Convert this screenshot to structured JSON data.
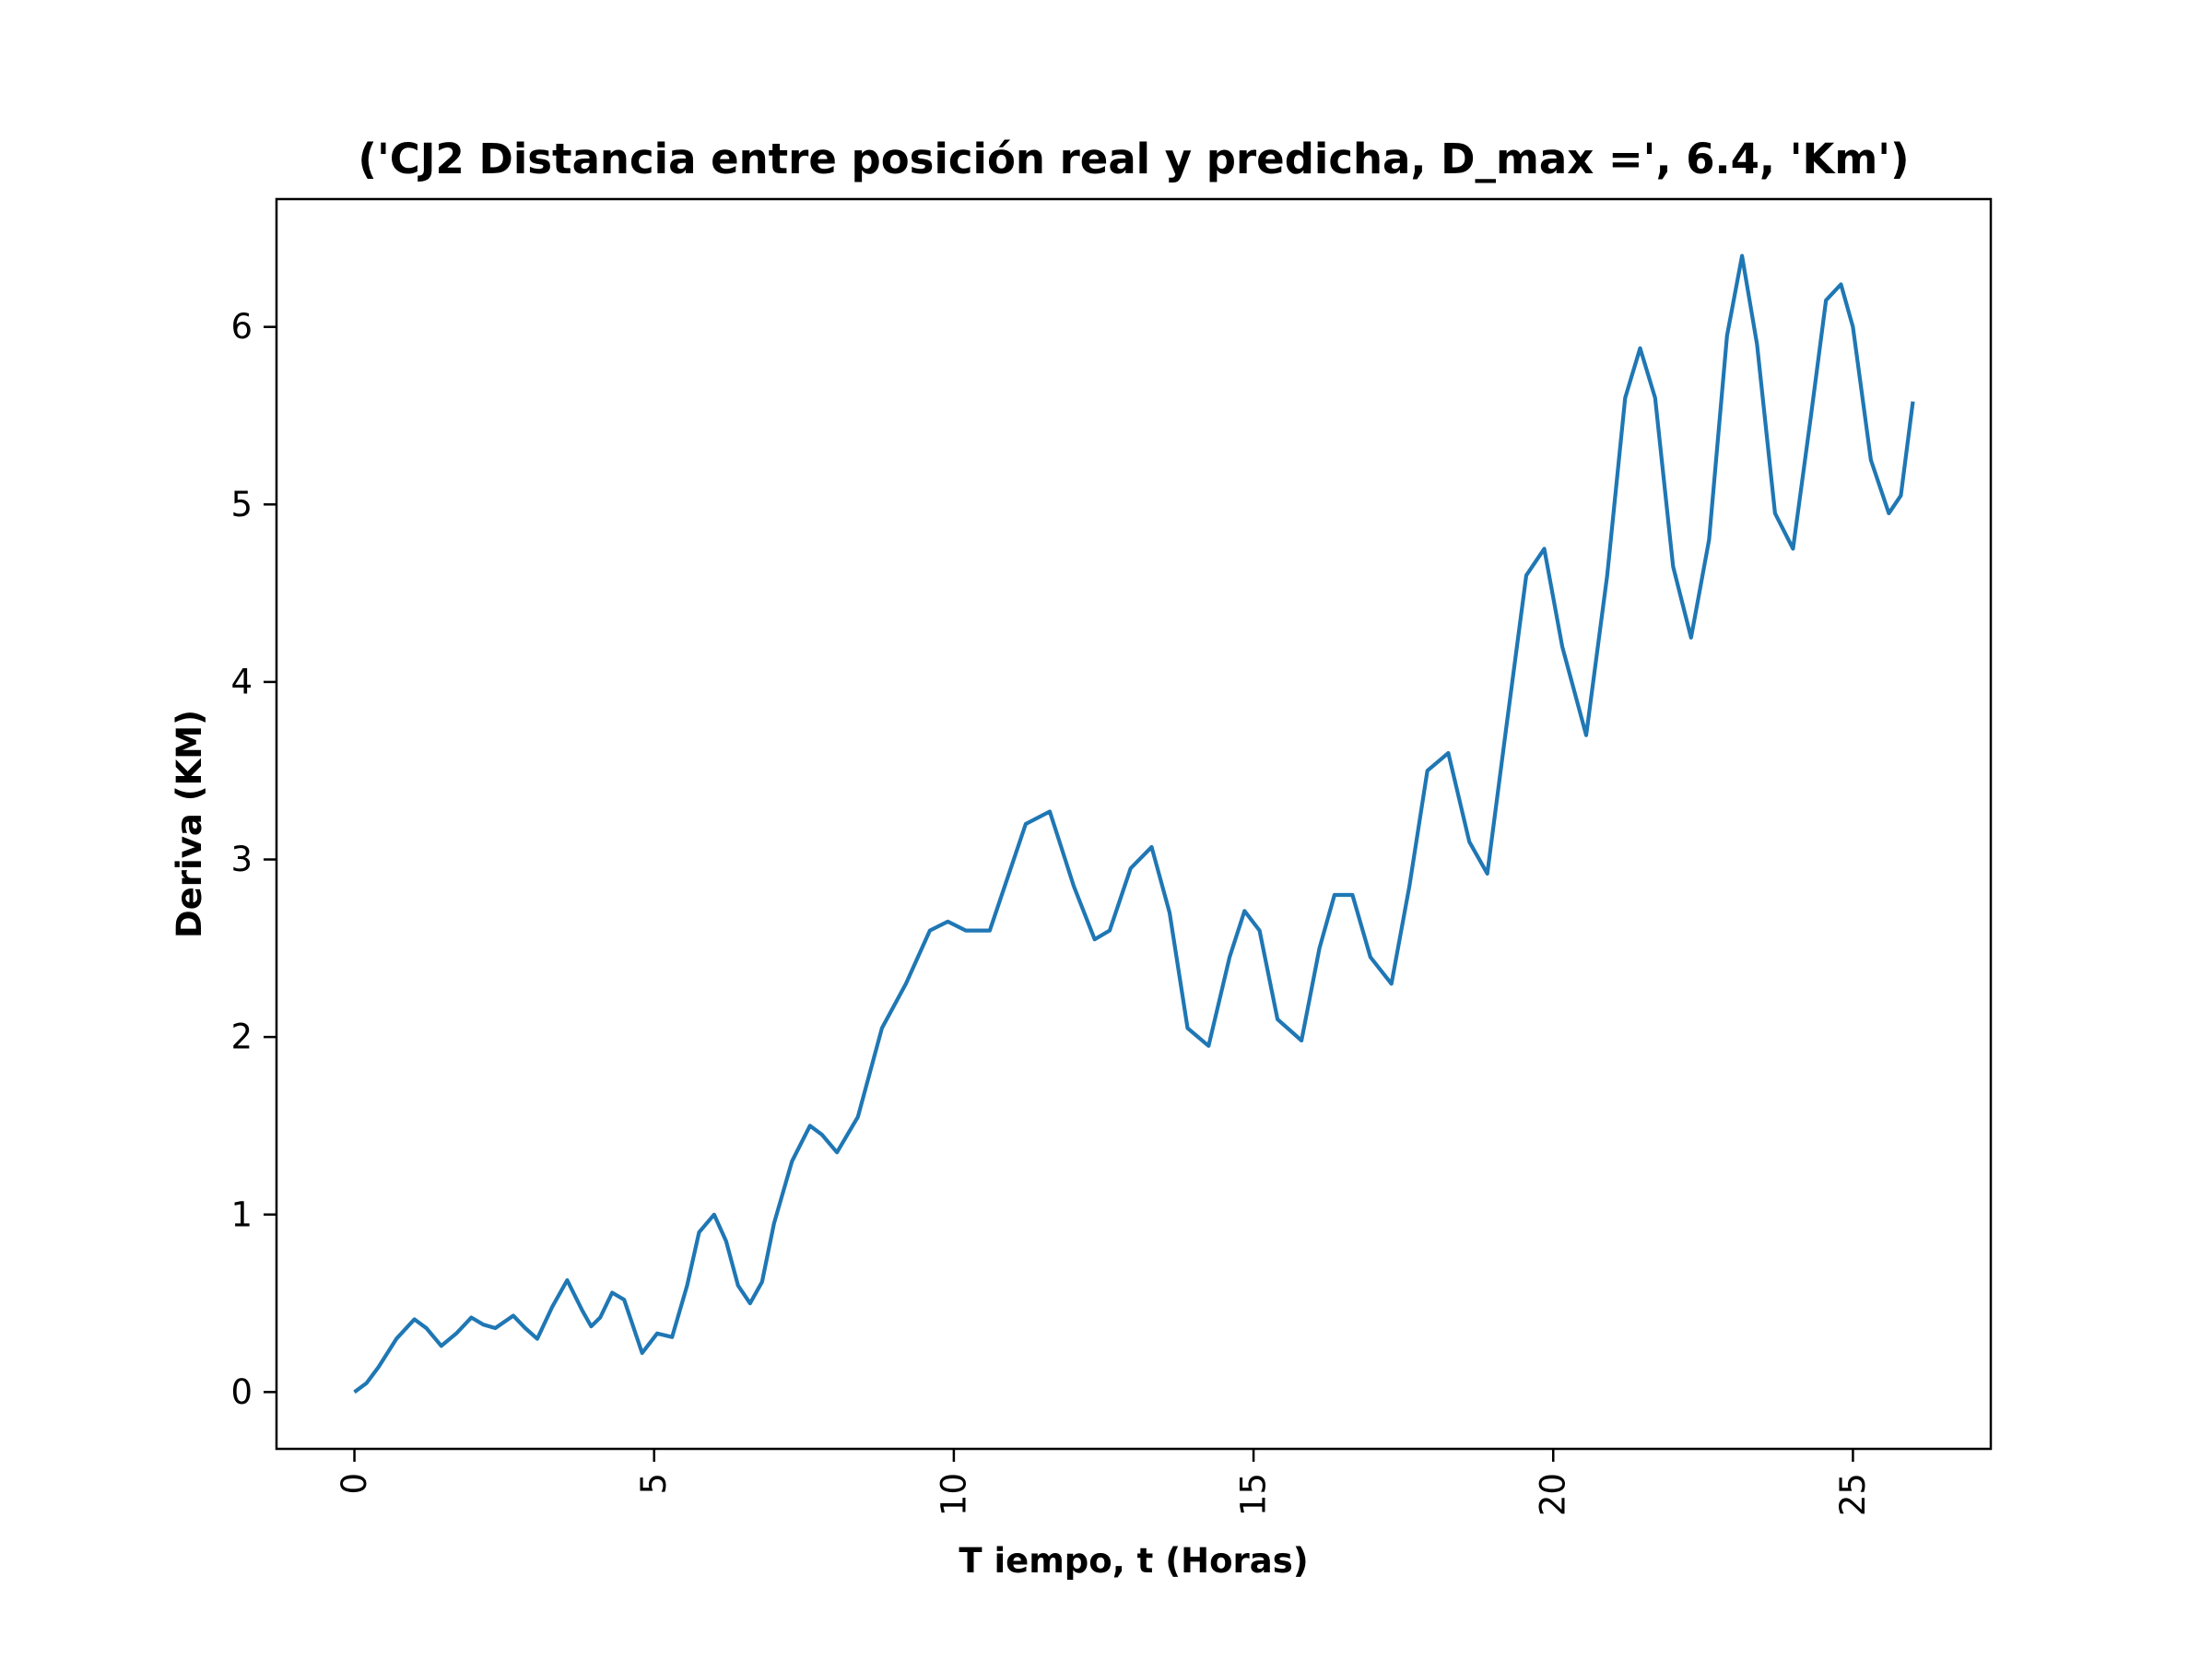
{
  "chart_data": {
    "type": "line",
    "title": "('CJ2 Distancia entre posición real y predicha, D_max =', 6.4, 'Km')",
    "xlabel": "T iempo, t (Horas)",
    "ylabel": "Deriva (KM)",
    "xlim": [
      -1.3,
      27.3
    ],
    "ylim": [
      -0.32,
      6.72
    ],
    "xticks": [
      0,
      5,
      10,
      15,
      20,
      25
    ],
    "xtick_labels": [
      "0",
      "5",
      "10",
      "15",
      "20",
      "25"
    ],
    "yticks": [
      0,
      1,
      2,
      3,
      4,
      5,
      6
    ],
    "ytick_labels": [
      "0",
      "1",
      "2",
      "3",
      "4",
      "5",
      "6"
    ],
    "grid": false,
    "line_color": "#1f77b4",
    "series": [
      {
        "x": [
          0,
          0.2,
          0.4,
          0.7,
          1.0,
          1.2,
          1.45,
          1.7,
          1.95,
          2.15,
          2.35,
          2.65,
          2.85,
          3.05,
          3.3,
          3.55,
          3.8,
          3.95,
          4.1,
          4.3,
          4.5,
          4.8,
          5.05,
          5.3,
          5.55,
          5.75,
          6.0,
          6.2,
          6.4,
          6.6,
          6.8,
          7.0,
          7.3,
          7.6,
          7.8,
          8.05,
          8.4,
          8.8,
          9.2,
          9.6,
          9.9,
          10.2,
          10.6,
          10.9,
          11.2,
          11.6,
          12.0,
          12.35,
          12.6,
          12.95,
          13.3,
          13.6,
          13.9,
          14.25,
          14.6,
          14.85,
          15.1,
          15.4,
          15.8,
          16.1,
          16.35,
          16.65,
          16.95,
          17.3,
          17.6,
          17.9,
          18.25,
          18.6,
          18.9,
          19.2,
          19.55,
          19.85,
          20.15,
          20.55,
          20.9,
          21.2,
          21.45,
          21.7,
          22.0,
          22.3,
          22.6,
          22.9,
          23.15,
          23.4,
          23.7,
          24.0,
          24.3,
          24.55,
          24.8,
          25.0,
          25.3,
          25.6,
          25.8,
          26.0
        ],
        "y": [
          0.0,
          0.05,
          0.14,
          0.3,
          0.41,
          0.36,
          0.26,
          0.33,
          0.42,
          0.38,
          0.36,
          0.43,
          0.36,
          0.3,
          0.48,
          0.63,
          0.46,
          0.37,
          0.42,
          0.56,
          0.52,
          0.22,
          0.33,
          0.31,
          0.6,
          0.9,
          1.0,
          0.85,
          0.6,
          0.5,
          0.62,
          0.95,
          1.3,
          1.5,
          1.45,
          1.35,
          1.55,
          2.05,
          2.3,
          2.6,
          2.65,
          2.6,
          2.6,
          2.9,
          3.2,
          3.27,
          2.85,
          2.55,
          2.6,
          2.95,
          3.07,
          2.7,
          2.05,
          1.95,
          2.45,
          2.71,
          2.6,
          2.1,
          1.98,
          2.5,
          2.8,
          2.8,
          2.45,
          2.3,
          2.85,
          3.5,
          3.6,
          3.1,
          2.92,
          3.7,
          4.6,
          4.75,
          4.2,
          3.7,
          4.6,
          5.6,
          5.88,
          5.6,
          4.65,
          4.25,
          4.8,
          5.95,
          6.4,
          5.9,
          4.95,
          4.75,
          5.5,
          6.15,
          6.24,
          6.0,
          5.25,
          4.95,
          5.05,
          5.58
        ]
      }
    ]
  }
}
